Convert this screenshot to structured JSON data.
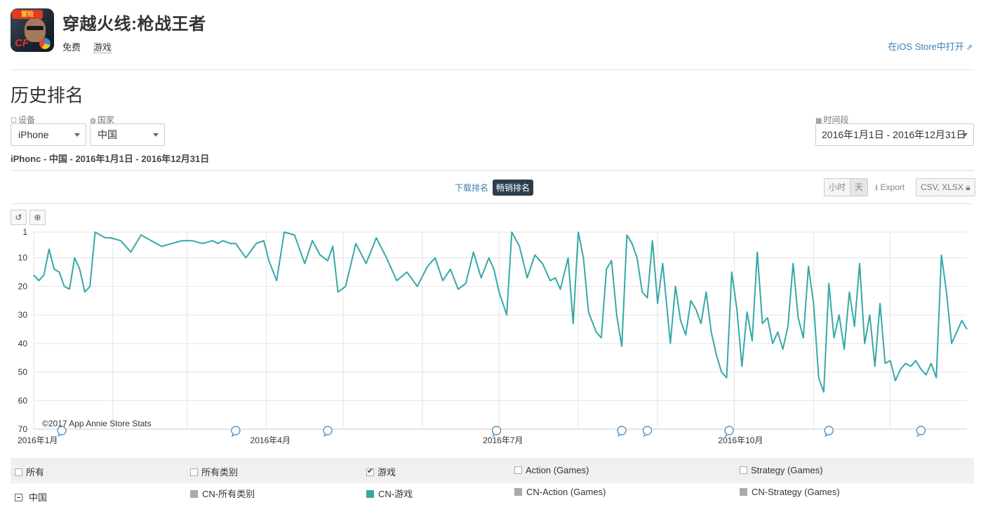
{
  "app": {
    "title": "穿越火线:枪战王者",
    "price": "免费",
    "genre": "游戏",
    "open_store": "在iOS Store中打开",
    "icon_text": "冒险",
    "icon_brand": "CF"
  },
  "section": {
    "title": "历史排名"
  },
  "filters": {
    "device_label": "设备",
    "device_value": "iPhone",
    "country_label": "国家",
    "country_value": "中国",
    "period_label": "时间段",
    "period_value": "2016年1月1日 - 2016年12月31日",
    "summary": "iPhonc - 中国 - 2016年1月1日 - 2016年12月31日"
  },
  "tabs": {
    "downloads": "下载排名",
    "grossing": "畅销排名",
    "active": "grossing"
  },
  "granularity": {
    "hour": "小时",
    "day": "天",
    "active": "day"
  },
  "export": {
    "label": "Export",
    "formats": "CSV, XLSX"
  },
  "icons": {
    "device": "square-icon",
    "country": "globe-icon",
    "period": "calendar-icon",
    "reset": "undo-icon",
    "zoom": "zoom-icon",
    "export": "download-icon",
    "csv": "lock-icon",
    "external": "external-link-icon",
    "event_marker": "speech-bubble-icon"
  },
  "chart_data": {
    "type": "line",
    "xlabel": "",
    "ylabel": "",
    "y_inverted": true,
    "ylim": [
      1,
      70
    ],
    "yticks": [
      1,
      10,
      20,
      30,
      40,
      50,
      60,
      70
    ],
    "xticks": [
      "2016年1月",
      "2016年4月",
      "2016年7月",
      "2016年10月"
    ],
    "x_range": [
      "2016-01-01",
      "2016-12-31"
    ],
    "line_color": "#36a8a8",
    "grid": true,
    "copyright": "©2017 App Annie Store Stats",
    "event_marker_dates": [
      "2016-01-12",
      "2016-03-20",
      "2016-04-25",
      "2016-06-30",
      "2016-08-18",
      "2016-08-28",
      "2016-09-29",
      "2016-11-07",
      "2016-12-13"
    ],
    "series": [
      {
        "name": "CN-游戏",
        "x": [
          "2016-01-01",
          "2016-01-03",
          "2016-01-05",
          "2016-01-07",
          "2016-01-09",
          "2016-01-11",
          "2016-01-13",
          "2016-01-15",
          "2016-01-17",
          "2016-01-19",
          "2016-01-21",
          "2016-01-23",
          "2016-01-25",
          "2016-01-27",
          "2016-01-29",
          "2016-01-31",
          "2016-02-04",
          "2016-02-08",
          "2016-02-12",
          "2016-02-16",
          "2016-02-20",
          "2016-02-24",
          "2016-02-28",
          "2016-03-03",
          "2016-03-07",
          "2016-03-11",
          "2016-03-13",
          "2016-03-15",
          "2016-03-18",
          "2016-03-20",
          "2016-03-24",
          "2016-03-28",
          "2016-03-31",
          "2016-04-02",
          "2016-04-05",
          "2016-04-08",
          "2016-04-12",
          "2016-04-16",
          "2016-04-19",
          "2016-04-22",
          "2016-04-25",
          "2016-04-27",
          "2016-04-29",
          "2016-05-02",
          "2016-05-06",
          "2016-05-10",
          "2016-05-14",
          "2016-05-18",
          "2016-05-22",
          "2016-05-26",
          "2016-05-30",
          "2016-06-03",
          "2016-06-06",
          "2016-06-09",
          "2016-06-12",
          "2016-06-15",
          "2016-06-18",
          "2016-06-21",
          "2016-06-24",
          "2016-06-27",
          "2016-06-29",
          "2016-07-01",
          "2016-07-04",
          "2016-07-06",
          "2016-07-09",
          "2016-07-12",
          "2016-07-15",
          "2016-07-18",
          "2016-07-21",
          "2016-07-23",
          "2016-07-25",
          "2016-07-28",
          "2016-07-30",
          "2016-08-01",
          "2016-08-03",
          "2016-08-05",
          "2016-08-08",
          "2016-08-10",
          "2016-08-12",
          "2016-08-14",
          "2016-08-16",
          "2016-08-18",
          "2016-08-20",
          "2016-08-22",
          "2016-08-24",
          "2016-08-26",
          "2016-08-28",
          "2016-08-30",
          "2016-09-01",
          "2016-09-03",
          "2016-09-06",
          "2016-09-08",
          "2016-09-10",
          "2016-09-12",
          "2016-09-14",
          "2016-09-16",
          "2016-09-18",
          "2016-09-20",
          "2016-09-22",
          "2016-09-24",
          "2016-09-26",
          "2016-09-28",
          "2016-09-30",
          "2016-10-02",
          "2016-10-04",
          "2016-10-06",
          "2016-10-08",
          "2016-10-10",
          "2016-10-12",
          "2016-10-14",
          "2016-10-16",
          "2016-10-18",
          "2016-10-20",
          "2016-10-22",
          "2016-10-24",
          "2016-10-26",
          "2016-10-28",
          "2016-10-30",
          "2016-11-01",
          "2016-11-03",
          "2016-11-05",
          "2016-11-07",
          "2016-11-09",
          "2016-11-11",
          "2016-11-13",
          "2016-11-15",
          "2016-11-17",
          "2016-11-19",
          "2016-11-21",
          "2016-11-23",
          "2016-11-25",
          "2016-11-27",
          "2016-11-29",
          "2016-12-01",
          "2016-12-03",
          "2016-12-05",
          "2016-12-07",
          "2016-12-09",
          "2016-12-11",
          "2016-12-13",
          "2016-12-15",
          "2016-12-17",
          "2016-12-19",
          "2016-12-21",
          "2016-12-23",
          "2016-12-25",
          "2016-12-27",
          "2016-12-29",
          "2016-12-31"
        ],
        "y": [
          16,
          18,
          16,
          7,
          14,
          15,
          20,
          21,
          10,
          14,
          22,
          20,
          1,
          2,
          3,
          3,
          4,
          8,
          2,
          4,
          6,
          5,
          4,
          4,
          5,
          4,
          5,
          4,
          5,
          5,
          10,
          5,
          4,
          11,
          18,
          1,
          2,
          12,
          4,
          9,
          11,
          6,
          22,
          20,
          5,
          12,
          3,
          10,
          18,
          15,
          20,
          13,
          10,
          18,
          14,
          21,
          19,
          8,
          17,
          10,
          14,
          22,
          30,
          1,
          6,
          17,
          9,
          12,
          18,
          17,
          21,
          10,
          33,
          1,
          10,
          29,
          36,
          38,
          14,
          11,
          30,
          41,
          2,
          5,
          10,
          22,
          24,
          4,
          26,
          12,
          40,
          20,
          32,
          37,
          25,
          28,
          33,
          22,
          36,
          44,
          50,
          52,
          15,
          28,
          48,
          29,
          39,
          8,
          33,
          31,
          40,
          36,
          42,
          34,
          12,
          31,
          38,
          13,
          26,
          52,
          57,
          19,
          38,
          30,
          42,
          22,
          34,
          12,
          40,
          30,
          48,
          26,
          47,
          46,
          53,
          49,
          47,
          48,
          46,
          49,
          51,
          47,
          52,
          9,
          22,
          40,
          36,
          32,
          35
        ]
      }
    ]
  },
  "legend": {
    "row1": [
      "所有",
      "所有类别",
      "游戏",
      "Action (Games)",
      "Strategy (Games)"
    ],
    "row1_checked": [
      false,
      false,
      true,
      false,
      false
    ],
    "row2_label": "中国",
    "row2": [
      "CN-所有类别",
      "CN-游戏",
      "CN-Action (Games)",
      "CN-Strategy (Games)"
    ],
    "row2_colors": [
      "#aaaaaa",
      "#36a8a8",
      "#aaaaaa",
      "#aaaaaa"
    ]
  }
}
